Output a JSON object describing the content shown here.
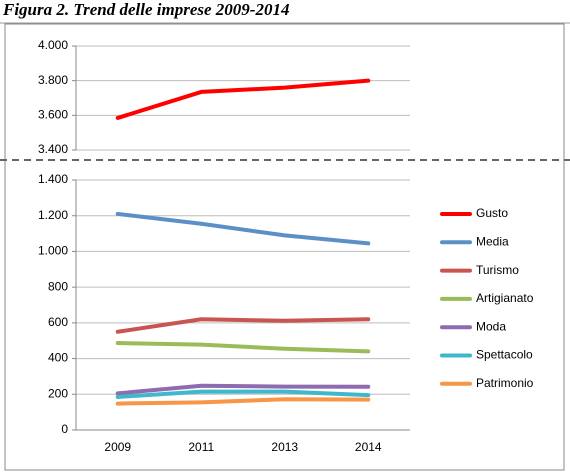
{
  "chart_data": {
    "type": "line",
    "title": "Figura 2. Trend delle imprese 2009-2014",
    "categories": [
      "2009",
      "2011",
      "2013",
      "2014"
    ],
    "series": [
      {
        "name": "Gusto",
        "color": "#ff0000",
        "values": [
          3585,
          3735,
          3760,
          3800
        ],
        "axis": "y2"
      },
      {
        "name": "Media",
        "color": "#5b8fc7",
        "values": [
          1210,
          1155,
          1090,
          1045
        ]
      },
      {
        "name": "Turismo",
        "color": "#c8554f",
        "values": [
          550,
          620,
          612,
          620
        ]
      },
      {
        "name": "Artigianato",
        "color": "#9bbb59",
        "values": [
          487,
          478,
          455,
          440
        ]
      },
      {
        "name": "Moda",
        "color": "#8f6bb0",
        "values": [
          205,
          248,
          243,
          242
        ]
      },
      {
        "name": "Spettacolo",
        "color": "#3fb8cc",
        "values": [
          185,
          215,
          215,
          195
        ]
      },
      {
        "name": "Patrimonio",
        "color": "#f79646",
        "values": [
          148,
          155,
          172,
          170
        ]
      }
    ],
    "ylim": [
      0,
      1400
    ],
    "yticks": [
      0,
      200,
      400,
      600,
      800,
      {
        "value": 1000,
        "label": "1.000"
      },
      {
        "value": 1200,
        "label": "1.200"
      },
      {
        "value": 1400,
        "label": "1.400"
      }
    ],
    "y2lim": [
      3400,
      4000
    ],
    "y2ticks": [
      {
        "value": 3400,
        "label": "3.400"
      },
      {
        "value": 3600,
        "label": "3.600"
      },
      {
        "value": 3800,
        "label": "3.800"
      },
      {
        "value": 4000,
        "label": "4.000"
      }
    ],
    "grid": true,
    "legend": "right"
  }
}
